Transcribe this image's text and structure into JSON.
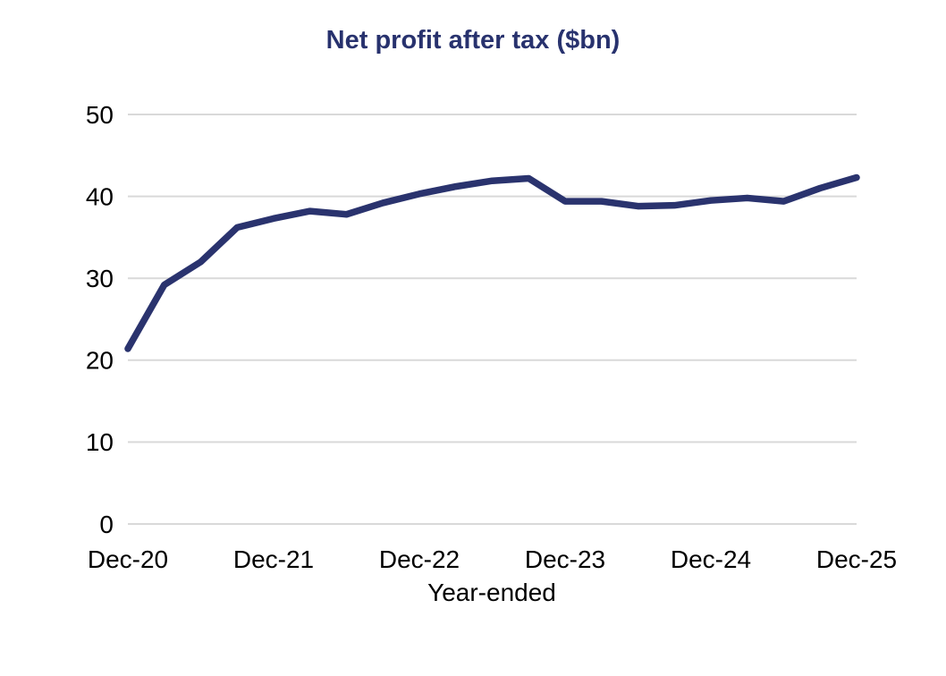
{
  "page": {
    "background_color": "#ffffff"
  },
  "chart": {
    "colors": {
      "line": "#2a336e",
      "title_text": "#28326e",
      "gridline": "#d9d9d9",
      "tick_text": "#000000"
    }
  },
  "chart_data": {
    "type": "line",
    "title": "Net profit after tax ($bn)",
    "xlabel": "Year-ended",
    "ylabel": "",
    "series_name": "Net profit after tax ($bn)",
    "x": [
      "Dec-20",
      "Mar-21",
      "Jun-21",
      "Sep-21",
      "Dec-21",
      "Mar-22",
      "Jun-22",
      "Sep-22",
      "Dec-22",
      "Mar-23",
      "Jun-23",
      "Sep-23",
      "Dec-23",
      "Mar-24",
      "Jun-24",
      "Sep-24",
      "Dec-24",
      "Mar-25",
      "Jun-25",
      "Sep-25",
      "Dec-25"
    ],
    "values": [
      21.4,
      29.2,
      32.0,
      36.2,
      37.3,
      38.2,
      37.8,
      39.2,
      40.3,
      41.2,
      41.9,
      42.2,
      39.4,
      39.4,
      38.8,
      38.9,
      39.5,
      39.8,
      39.4,
      41.0,
      42.3
    ],
    "x_tick_labels": [
      "Dec-20",
      "Dec-21",
      "Dec-22",
      "Dec-23",
      "Dec-24",
      "Dec-25"
    ],
    "x_tick_every": 4,
    "y_ticks": [
      0,
      10,
      20,
      30,
      40,
      50
    ],
    "ylim": [
      0,
      50
    ],
    "grid": "horizontal-only",
    "legend": "none"
  }
}
